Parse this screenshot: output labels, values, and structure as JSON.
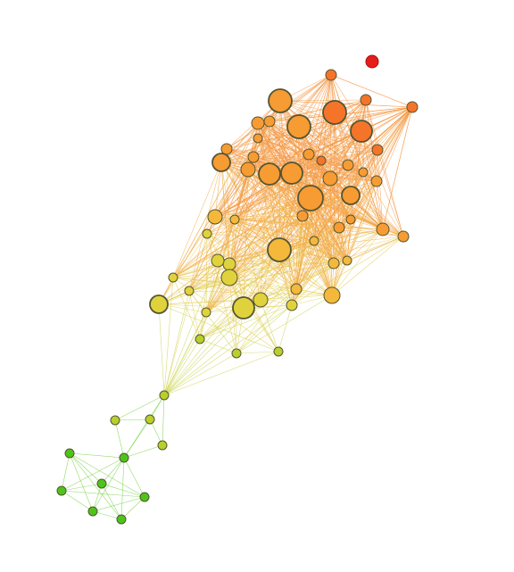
{
  "diagram": {
    "type": "network-graph",
    "node_count": 69,
    "colors": {
      "green": "#4ec41a",
      "yellow_green": "#b9cf2c",
      "yellow": "#e0d23c",
      "orange_yellow": "#f4b83a",
      "orange": "#f79b33",
      "deep_orange": "#f4752a",
      "red": "#e81c1c",
      "node_outline": "#555533"
    }
  }
}
